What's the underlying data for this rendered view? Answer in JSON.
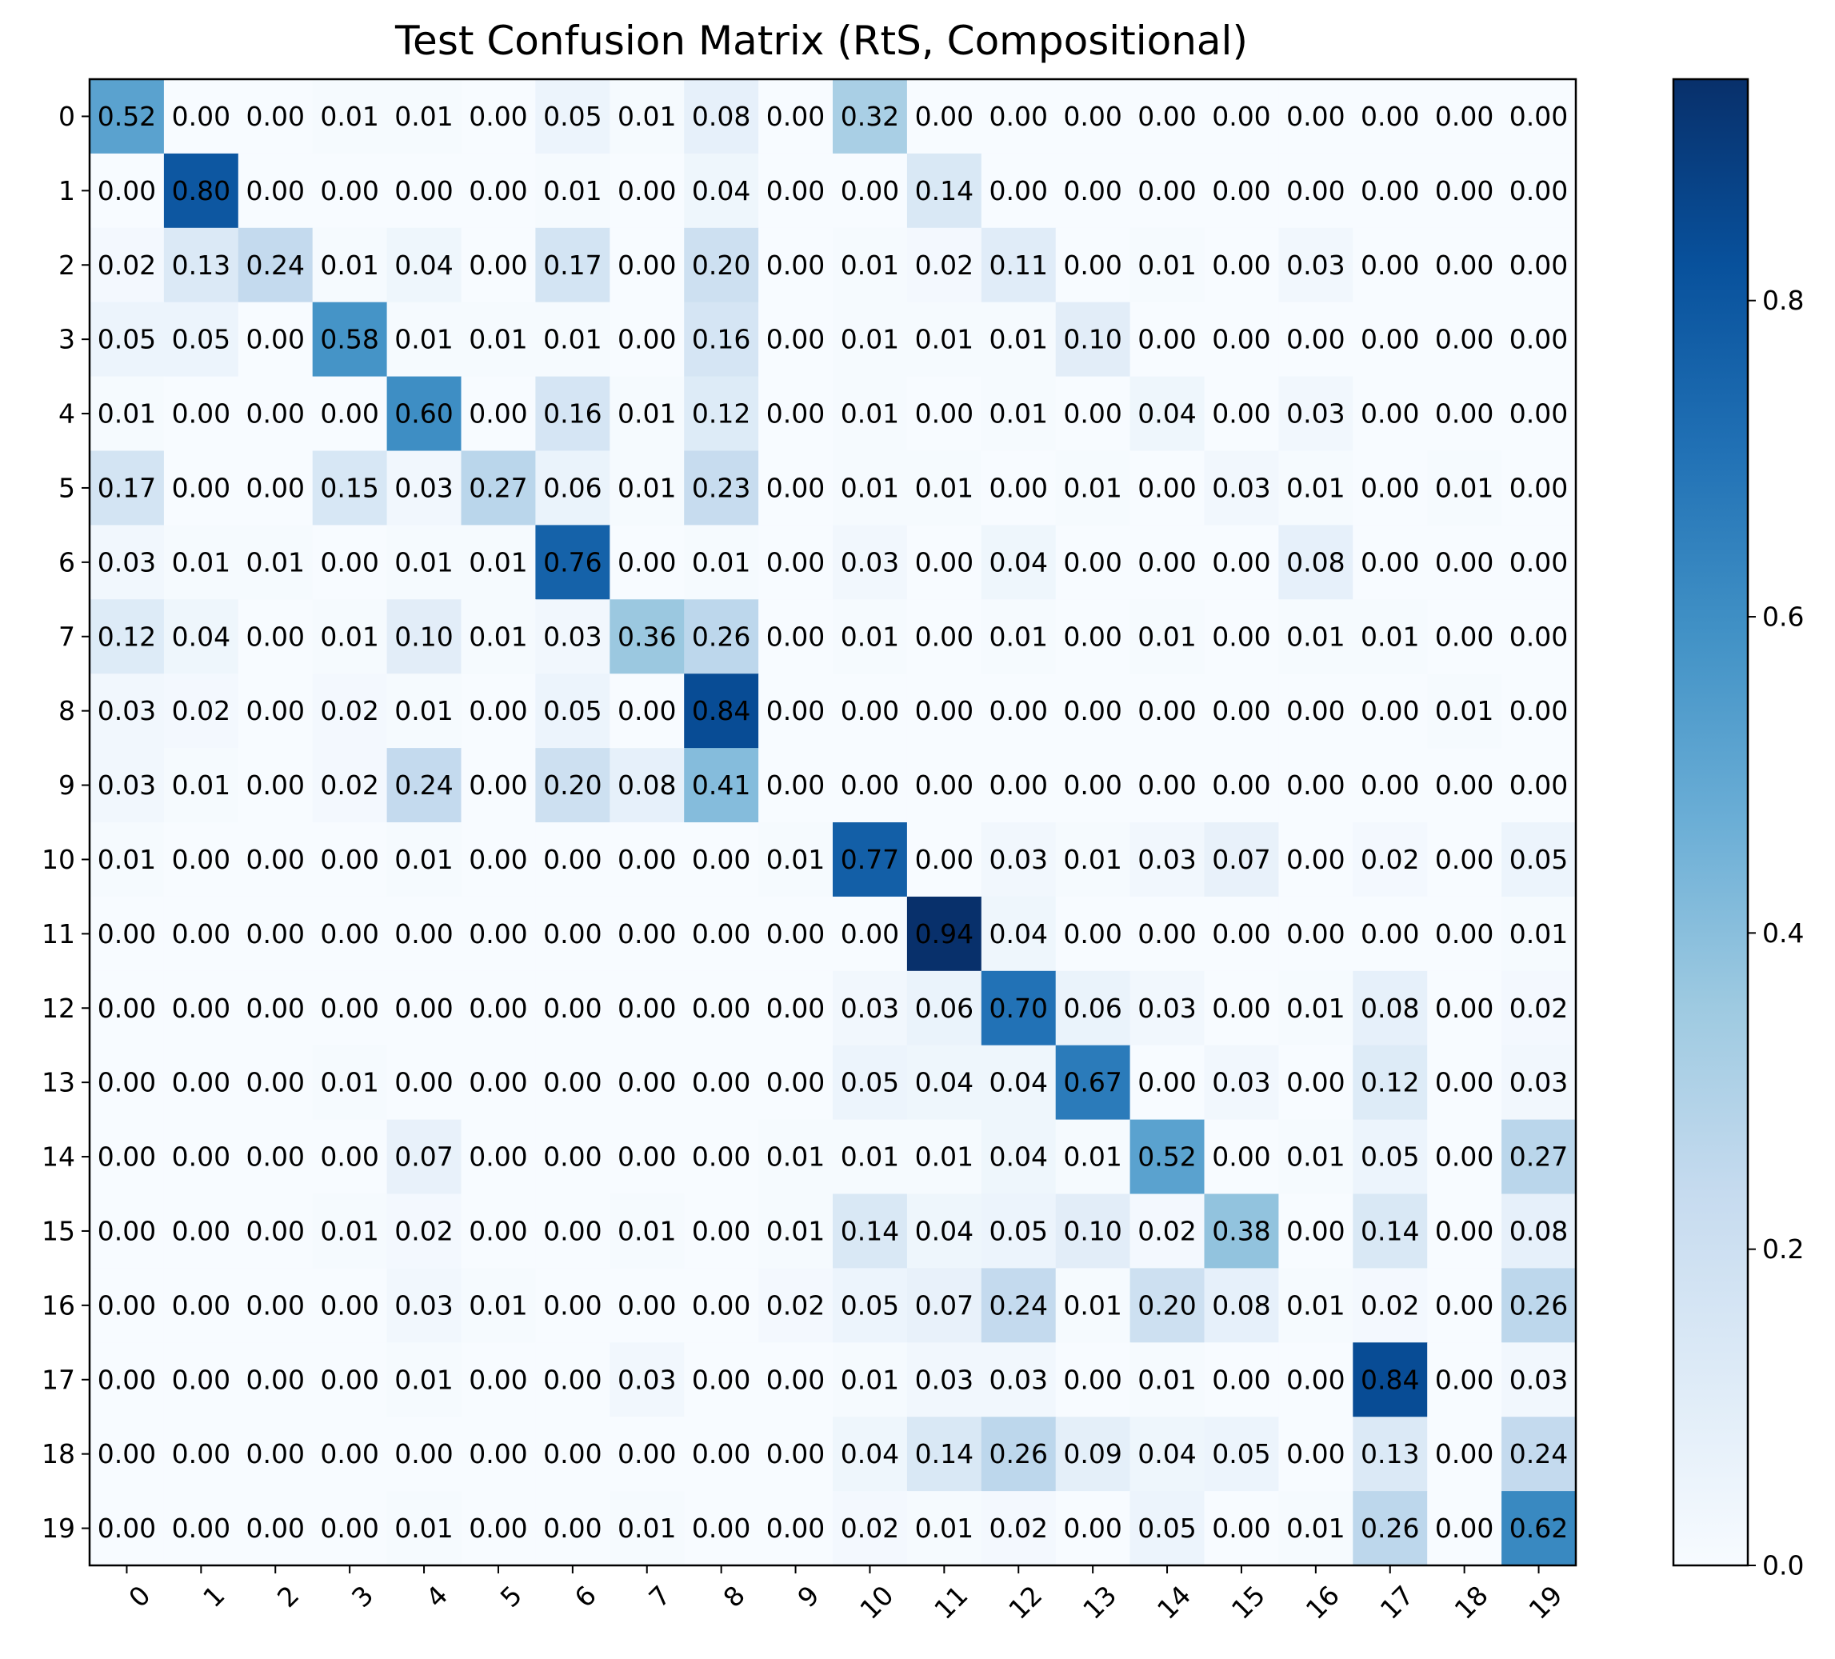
{
  "chart_data": {
    "type": "heatmap",
    "title": "Test Confusion Matrix (RtS, Compositional)",
    "xlabel": "",
    "ylabel": "",
    "x_tick_labels": [
      "0",
      "1",
      "2",
      "3",
      "4",
      "5",
      "6",
      "7",
      "8",
      "9",
      "10",
      "11",
      "12",
      "13",
      "14",
      "15",
      "16",
      "17",
      "18",
      "19"
    ],
    "y_tick_labels": [
      "0",
      "1",
      "2",
      "3",
      "4",
      "5",
      "6",
      "7",
      "8",
      "9",
      "10",
      "11",
      "12",
      "13",
      "14",
      "15",
      "16",
      "17",
      "18",
      "19"
    ],
    "values": [
      [
        0.52,
        0.0,
        0.0,
        0.01,
        0.01,
        0.0,
        0.05,
        0.01,
        0.08,
        0.0,
        0.32,
        0.0,
        0.0,
        0.0,
        0.0,
        0.0,
        0.0,
        0.0,
        0.0,
        0.0
      ],
      [
        0.0,
        0.8,
        0.0,
        0.0,
        0.0,
        0.0,
        0.01,
        0.0,
        0.04,
        0.0,
        0.0,
        0.14,
        0.0,
        0.0,
        0.0,
        0.0,
        0.0,
        0.0,
        0.0,
        0.0
      ],
      [
        0.02,
        0.13,
        0.24,
        0.01,
        0.04,
        0.0,
        0.17,
        0.0,
        0.2,
        0.0,
        0.01,
        0.02,
        0.11,
        0.0,
        0.01,
        0.0,
        0.03,
        0.0,
        0.0,
        0.0
      ],
      [
        0.05,
        0.05,
        0.0,
        0.58,
        0.01,
        0.01,
        0.01,
        0.0,
        0.16,
        0.0,
        0.01,
        0.01,
        0.01,
        0.1,
        0.0,
        0.0,
        0.0,
        0.0,
        0.0,
        0.0
      ],
      [
        0.01,
        0.0,
        0.0,
        0.0,
        0.6,
        0.0,
        0.16,
        0.01,
        0.12,
        0.0,
        0.01,
        0.0,
        0.01,
        0.0,
        0.04,
        0.0,
        0.03,
        0.0,
        0.0,
        0.0
      ],
      [
        0.17,
        0.0,
        0.0,
        0.15,
        0.03,
        0.27,
        0.06,
        0.01,
        0.23,
        0.0,
        0.01,
        0.01,
        0.0,
        0.01,
        0.0,
        0.03,
        0.01,
        0.0,
        0.01,
        0.0
      ],
      [
        0.03,
        0.01,
        0.01,
        0.0,
        0.01,
        0.01,
        0.76,
        0.0,
        0.01,
        0.0,
        0.03,
        0.0,
        0.04,
        0.0,
        0.0,
        0.0,
        0.08,
        0.0,
        0.0,
        0.0
      ],
      [
        0.12,
        0.04,
        0.0,
        0.01,
        0.1,
        0.01,
        0.03,
        0.36,
        0.26,
        0.0,
        0.01,
        0.0,
        0.01,
        0.0,
        0.01,
        0.0,
        0.01,
        0.01,
        0.0,
        0.0
      ],
      [
        0.03,
        0.02,
        0.0,
        0.02,
        0.01,
        0.0,
        0.05,
        0.0,
        0.84,
        0.0,
        0.0,
        0.0,
        0.0,
        0.0,
        0.0,
        0.0,
        0.0,
        0.0,
        0.01,
        0.0
      ],
      [
        0.03,
        0.01,
        0.0,
        0.02,
        0.24,
        0.0,
        0.2,
        0.08,
        0.41,
        0.0,
        0.0,
        0.0,
        0.0,
        0.0,
        0.0,
        0.0,
        0.0,
        0.0,
        0.0,
        0.0
      ],
      [
        0.01,
        0.0,
        0.0,
        0.0,
        0.01,
        0.0,
        0.0,
        0.0,
        0.0,
        0.01,
        0.77,
        0.0,
        0.03,
        0.01,
        0.03,
        0.07,
        0.0,
        0.02,
        0.0,
        0.05
      ],
      [
        0.0,
        0.0,
        0.0,
        0.0,
        0.0,
        0.0,
        0.0,
        0.0,
        0.0,
        0.0,
        0.0,
        0.94,
        0.04,
        0.0,
        0.0,
        0.0,
        0.0,
        0.0,
        0.0,
        0.01
      ],
      [
        0.0,
        0.0,
        0.0,
        0.0,
        0.0,
        0.0,
        0.0,
        0.0,
        0.0,
        0.0,
        0.03,
        0.06,
        0.7,
        0.06,
        0.03,
        0.0,
        0.01,
        0.08,
        0.0,
        0.02
      ],
      [
        0.0,
        0.0,
        0.0,
        0.01,
        0.0,
        0.0,
        0.0,
        0.0,
        0.0,
        0.0,
        0.05,
        0.04,
        0.04,
        0.67,
        0.0,
        0.03,
        0.0,
        0.12,
        0.0,
        0.03
      ],
      [
        0.0,
        0.0,
        0.0,
        0.0,
        0.07,
        0.0,
        0.0,
        0.0,
        0.0,
        0.01,
        0.01,
        0.01,
        0.04,
        0.01,
        0.52,
        0.0,
        0.01,
        0.05,
        0.0,
        0.27
      ],
      [
        0.0,
        0.0,
        0.0,
        0.01,
        0.02,
        0.0,
        0.0,
        0.01,
        0.0,
        0.01,
        0.14,
        0.04,
        0.05,
        0.1,
        0.02,
        0.38,
        0.0,
        0.14,
        0.0,
        0.08
      ],
      [
        0.0,
        0.0,
        0.0,
        0.0,
        0.03,
        0.01,
        0.0,
        0.0,
        0.0,
        0.02,
        0.05,
        0.07,
        0.24,
        0.01,
        0.2,
        0.08,
        0.01,
        0.02,
        0.0,
        0.26
      ],
      [
        0.0,
        0.0,
        0.0,
        0.0,
        0.01,
        0.0,
        0.0,
        0.03,
        0.0,
        0.0,
        0.01,
        0.03,
        0.03,
        0.0,
        0.01,
        0.0,
        0.0,
        0.84,
        0.0,
        0.03
      ],
      [
        0.0,
        0.0,
        0.0,
        0.0,
        0.0,
        0.0,
        0.0,
        0.0,
        0.0,
        0.0,
        0.04,
        0.14,
        0.26,
        0.09,
        0.04,
        0.05,
        0.0,
        0.13,
        0.0,
        0.24
      ],
      [
        0.0,
        0.0,
        0.0,
        0.0,
        0.01,
        0.0,
        0.0,
        0.01,
        0.0,
        0.0,
        0.02,
        0.01,
        0.02,
        0.0,
        0.05,
        0.0,
        0.01,
        0.26,
        0.0,
        0.62
      ]
    ],
    "colormap": "Blues",
    "vmin": 0.0,
    "vmax": 0.94,
    "colorbar": {
      "ticks": [
        0.0,
        0.2,
        0.4,
        0.6,
        0.8
      ],
      "tick_labels": [
        "0.0",
        "0.2",
        "0.4",
        "0.6",
        "0.8"
      ]
    },
    "cell_label_color": "#000000",
    "grid": false,
    "legend": "none"
  }
}
